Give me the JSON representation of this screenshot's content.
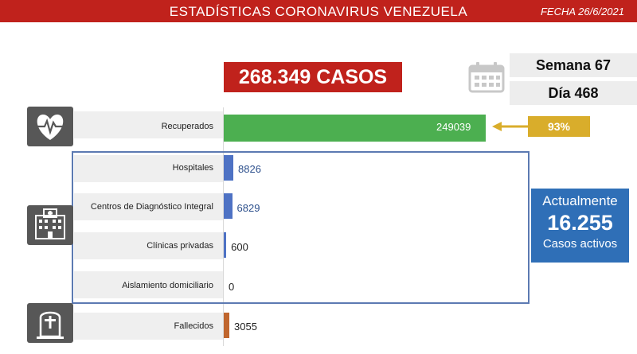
{
  "header": {
    "title": "ESTADÍSTICAS CORONAVIRUS VENEZUELA",
    "date": "FECHA 26/6/2021"
  },
  "total_cases": "268.349 CASOS",
  "week": "Semana 67",
  "day": "Día 468",
  "recovered_percent": "93%",
  "active": {
    "line1": "Actualmente",
    "value": "16.255",
    "line3": "Casos activos"
  },
  "icons": {
    "recovered": "heart-pulse-icon",
    "hospital": "hospital-icon",
    "deceased": "tombstone-icon",
    "calendar": "calendar-icon"
  },
  "colors": {
    "red": "#c0221c",
    "green": "#4caf50",
    "blue": "#4e72c4",
    "orange": "#c0662e",
    "gold": "#d9ad2b",
    "active_blue": "#2f6fb7"
  },
  "chart_data": {
    "type": "bar",
    "orientation": "horizontal",
    "categories": [
      "Recuperados",
      "Hospitales",
      "Centros de Diagnóstico Integral",
      "Clínicas privadas",
      "Aislamiento domiciliario",
      "Fallecidos"
    ],
    "values": [
      249039,
      8826,
      6829,
      600,
      0,
      3055
    ],
    "labels": [
      "249039",
      "8826",
      "6829",
      "600",
      "0",
      "3055"
    ],
    "bar_colors": [
      "#4caf50",
      "#4e72c4",
      "#4e72c4",
      "#4e72c4",
      "#4e72c4",
      "#c0662e"
    ],
    "xlim": [
      0,
      249039
    ]
  }
}
